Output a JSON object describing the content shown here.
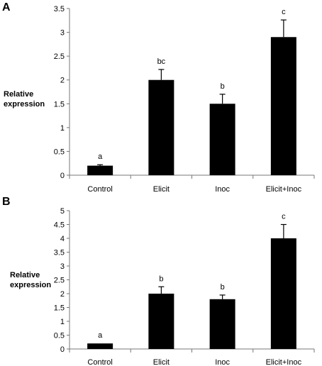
{
  "chart_data": [
    {
      "type": "bar",
      "panel": "A",
      "ylabel": [
        "Relative",
        "expression"
      ],
      "categories": [
        "Control",
        "Elicit",
        "Inoc",
        "Elicit+Inoc"
      ],
      "values": [
        0.2,
        2.0,
        1.5,
        2.9
      ],
      "errors": [
        0.02,
        0.22,
        0.2,
        0.36
      ],
      "significance": [
        "a",
        "bc",
        "b",
        "c"
      ],
      "ylim": [
        0,
        3.5
      ],
      "yticks": [
        "0",
        "0.5",
        "1",
        "1.5",
        "2",
        "2.5",
        "3",
        "3.5"
      ],
      "bar_color": "#000000"
    },
    {
      "type": "bar",
      "panel": "B",
      "ylabel": [
        "Relative",
        "expression"
      ],
      "categories": [
        "Control",
        "Elicit",
        "Inoc",
        "Elicit+Inoc"
      ],
      "values": [
        0.2,
        2.0,
        1.8,
        4.0
      ],
      "errors": [
        0.0,
        0.25,
        0.15,
        0.5
      ],
      "significance": [
        "a",
        "b",
        "b",
        "c"
      ],
      "ylim": [
        0,
        5
      ],
      "yticks": [
        "0",
        "0.5",
        "1",
        "1.5",
        "2",
        "2.5",
        "3",
        "3.5",
        "4",
        "4.5",
        "5"
      ],
      "bar_color": "#000000"
    }
  ]
}
